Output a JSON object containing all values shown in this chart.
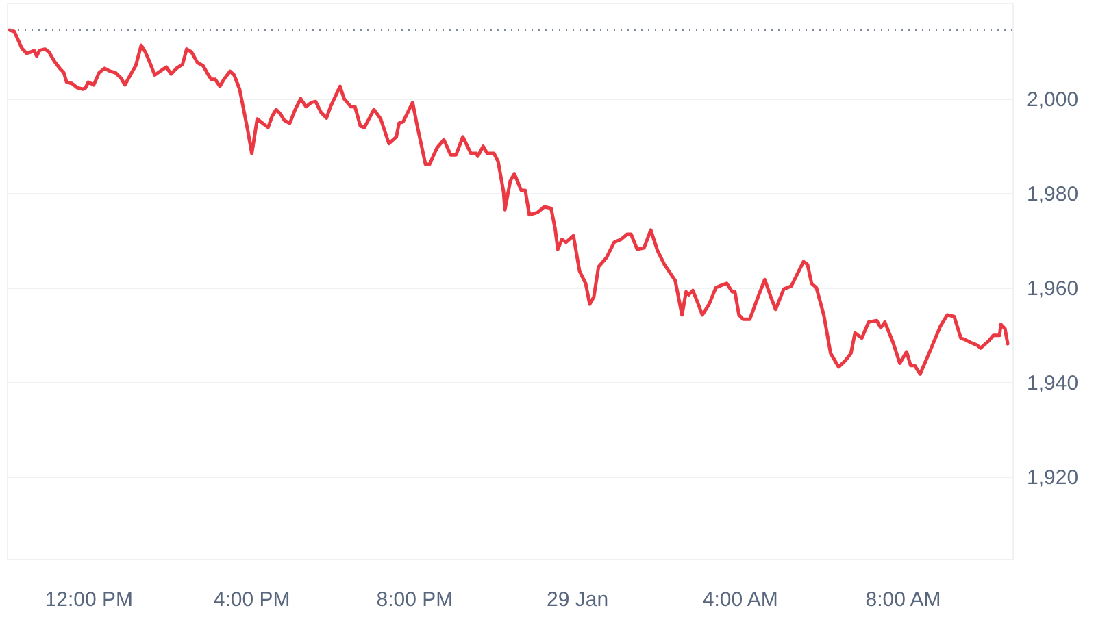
{
  "chart_data": {
    "type": "line",
    "x": [
      "--01-28T10:04",
      "--01-28T10:11",
      "--01-28T10:22",
      "--01-28T10:29",
      "--01-28T10:36",
      "--01-28T10:40",
      "--01-28T10:44",
      "--01-28T10:48",
      "--01-28T10:56",
      "--01-28T11:02",
      "--01-28T11:10",
      "--01-28T11:18",
      "--01-28T11:24",
      "--01-28T11:28",
      "--01-28T11:36",
      "--01-28T11:44",
      "--01-28T11:52",
      "--01-28T11:56",
      "--01-28T12:00",
      "--01-28T12:08",
      "--01-28T12:16",
      "--01-28T12:24",
      "--01-28T12:32",
      "--01-28T12:40",
      "--01-28T12:48",
      "--01-28T12:54",
      "--01-28T13:02",
      "--01-28T13:10",
      "--01-28T13:18",
      "--01-28T13:24",
      "--01-28T13:30",
      "--01-28T13:38",
      "--01-28T13:46",
      "--01-28T13:55",
      "--01-28T14:02",
      "--01-28T14:10",
      "--01-28T14:19",
      "--01-28T14:25",
      "--01-28T14:32",
      "--01-28T14:41",
      "--01-28T14:49",
      "--01-28T14:55",
      "--01-28T15:01",
      "--01-28T15:07",
      "--01-28T15:14",
      "--01-28T15:20",
      "--01-28T15:29",
      "--01-28T15:35",
      "--01-28T15:43",
      "--01-28T15:49",
      "--01-28T15:55",
      "--01-28T16:01",
      "--01-28T16:09",
      "--01-28T16:17",
      "--01-28T16:25",
      "--01-28T16:31",
      "--01-28T16:37",
      "--01-28T16:43",
      "--01-28T16:49",
      "--01-28T16:57",
      "--01-28T17:05",
      "--01-28T17:13",
      "--01-28T17:21",
      "--01-28T17:29",
      "--01-28T17:35",
      "--01-28T17:43",
      "--01-28T17:51",
      "--01-28T17:57",
      "--01-28T18:11",
      "--01-28T18:17",
      "--01-28T18:27",
      "--01-28T18:33",
      "--01-28T18:41",
      "--01-28T18:47",
      "--01-28T19:01",
      "--01-28T19:11",
      "--01-28T19:23",
      "--01-28T19:34",
      "--01-28T19:38",
      "--01-28T19:44",
      "--01-28T19:58",
      "--01-28T20:04",
      "--01-28T20:17",
      "--01-28T20:23",
      "--01-28T20:34",
      "--01-28T20:44",
      "--01-28T20:54",
      "--01-28T21:02",
      "--01-28T21:12",
      "--01-28T21:24",
      "--01-28T21:32",
      "--01-28T21:34",
      "--01-28T21:42",
      "--01-28T21:48",
      "--01-28T21:58",
      "--01-28T22:04",
      "--01-28T22:12",
      "--01-28T22:14",
      "--01-28T22:22",
      "--01-28T22:28",
      "--01-28T22:38",
      "--01-28T22:44",
      "--01-28T22:50",
      "--01-28T23:02",
      "--01-28T23:12",
      "--01-28T23:22",
      "--01-28T23:28",
      "--01-28T23:32",
      "--01-28T23:38",
      "--01-28T23:44",
      "--01-28T23:55",
      "--01-29T00:04",
      "--01-29T00:13",
      "--01-29T00:19",
      "--01-29T00:25",
      "--01-29T00:32",
      "--01-29T00:44",
      "--01-29T00:55",
      "--01-29T01:05",
      "--01-29T01:14",
      "--01-29T01:20",
      "--01-29T01:29",
      "--01-29T01:39",
      "--01-29T01:49",
      "--01-29T01:59",
      "--01-29T02:09",
      "--01-29T02:25",
      "--01-29T02:35",
      "--01-29T02:41",
      "--01-29T02:45",
      "--01-29T02:51",
      "--01-29T02:59",
      "--01-29T03:05",
      "--01-29T03:15",
      "--01-29T03:25",
      "--01-29T03:35",
      "--01-29T03:41",
      "--01-29T03:49",
      "--01-29T03:53",
      "--01-29T03:59",
      "--01-29T04:05",
      "--01-29T04:15",
      "--01-29T04:27",
      "--01-29T04:37",
      "--01-29T04:46",
      "--01-29T04:53",
      "--01-29T05:05",
      "--01-29T05:16",
      "--01-29T05:23",
      "--01-29T05:34",
      "--01-29T05:40",
      "--01-29T05:46",
      "--01-29T05:53",
      "--01-29T06:04",
      "--01-29T06:14",
      "--01-29T06:26",
      "--01-29T06:36",
      "--01-29T06:44",
      "--01-29T06:50",
      "--01-29T07:00",
      "--01-29T07:10",
      "--01-29T07:22",
      "--01-29T07:28",
      "--01-29T07:34",
      "--01-29T07:46",
      "--01-29T07:56",
      "--01-29T08:06",
      "--01-29T08:12",
      "--01-29T08:18",
      "--01-29T08:26",
      "--01-29T08:40",
      "--01-29T08:56",
      "--01-29T09:06",
      "--01-29T09:16",
      "--01-29T09:26",
      "--01-29T09:32",
      "--01-29T09:40",
      "--01-29T09:50",
      "--01-29T09:55",
      "--01-29T10:07",
      "--01-29T10:14",
      "--01-29T10:23",
      "--01-29T10:25",
      "--01-29T10:31",
      "--01-29T10:35"
    ],
    "series": [
      {
        "color": "#ea3943",
        "values": [
          2014.5,
          2014.2,
          2010.7,
          2009.6,
          2009.9,
          2010.2,
          2009.0,
          2010.2,
          2010.5,
          2009.9,
          2007.9,
          2006.4,
          2005.5,
          2003.5,
          2003.2,
          2002.3,
          2002.0,
          2002.3,
          2003.5,
          2002.9,
          2005.5,
          2006.4,
          2005.8,
          2005.5,
          2004.4,
          2002.9,
          2005.0,
          2007.0,
          2011.3,
          2009.9,
          2007.9,
          2005.0,
          2005.8,
          2006.7,
          2005.2,
          2006.4,
          2007.3,
          2010.5,
          2009.9,
          2007.6,
          2007.0,
          2005.5,
          2004.1,
          2004.1,
          2002.6,
          2004.1,
          2005.8,
          2005.0,
          2002.0,
          1997.7,
          1993.3,
          1988.4,
          1995.7,
          1994.8,
          1993.9,
          1996.3,
          1997.7,
          1996.8,
          1995.4,
          1994.8,
          1997.7,
          2000.0,
          1998.3,
          1999.2,
          1999.4,
          1997.1,
          1995.9,
          1998.3,
          2002.6,
          2000.0,
          1998.3,
          1998.3,
          1994.2,
          1993.9,
          1997.7,
          1995.7,
          1990.5,
          1991.9,
          1994.8,
          1995.1,
          1999.2,
          1994.8,
          1986.1,
          1986.1,
          1989.6,
          1991.3,
          1988.1,
          1988.1,
          1991.9,
          1988.4,
          1988.4,
          1987.8,
          1989.9,
          1988.4,
          1988.4,
          1986.7,
          1980.3,
          1976.5,
          1982.6,
          1984.1,
          1980.6,
          1980.6,
          1975.4,
          1975.9,
          1977.1,
          1976.8,
          1972.5,
          1968.1,
          1970.2,
          1969.6,
          1971.0,
          1963.5,
          1960.9,
          1956.5,
          1958.0,
          1964.4,
          1966.4,
          1969.6,
          1970.2,
          1971.3,
          1971.3,
          1968.1,
          1968.4,
          1972.2,
          1967.8,
          1964.9,
          1961.5,
          1954.2,
          1959.1,
          1958.5,
          1959.4,
          1956.5,
          1954.2,
          1956.5,
          1960.0,
          1960.6,
          1960.9,
          1959.1,
          1959.1,
          1954.2,
          1953.3,
          1953.3,
          1958.0,
          1961.7,
          1958.0,
          1955.4,
          1959.7,
          1960.3,
          1962.3,
          1965.5,
          1964.9,
          1960.9,
          1960.0,
          1954.2,
          1946.1,
          1943.2,
          1944.6,
          1946.1,
          1950.4,
          1949.3,
          1952.7,
          1953.0,
          1951.5,
          1952.7,
          1948.4,
          1944.0,
          1946.4,
          1943.5,
          1943.5,
          1941.7,
          1946.4,
          1951.9,
          1954.2,
          1953.9,
          1949.3,
          1949.0,
          1948.4,
          1947.8,
          1947.2,
          1948.7,
          1949.9,
          1949.9,
          1952.2,
          1951.3,
          1948.1
        ]
      }
    ],
    "xlim": [
      "--01-28T10:00",
      "--01-29T10:42"
    ],
    "xticks": [
      {
        "value": "--01-28T12:00",
        "label": "12:00 PM"
      },
      {
        "value": "--01-28T16:00",
        "label": "4:00 PM"
      },
      {
        "value": "--01-28T20:00",
        "label": "8:00 PM"
      },
      {
        "value": "--01-29T00:00",
        "label": "29 Jan"
      },
      {
        "value": "--01-29T04:00",
        "label": "4:00 AM"
      },
      {
        "value": "--01-29T08:00",
        "label": "8:00 AM"
      }
    ],
    "ylim": [
      1902.6,
      2020.3
    ],
    "yticks": [
      {
        "value": 1920,
        "label": "1,920"
      },
      {
        "value": 1940,
        "label": "1,940"
      },
      {
        "value": 1960,
        "label": "1,960"
      },
      {
        "value": 1980,
        "label": "1,980"
      },
      {
        "value": 2000,
        "label": "2,000"
      }
    ],
    "grid": "y",
    "marker": "none",
    "line_style": "solid",
    "ref_lines": [
      {
        "axis": "y",
        "value": 2014.5,
        "color": "#808a9d",
        "line_style": "dotted"
      }
    ]
  }
}
